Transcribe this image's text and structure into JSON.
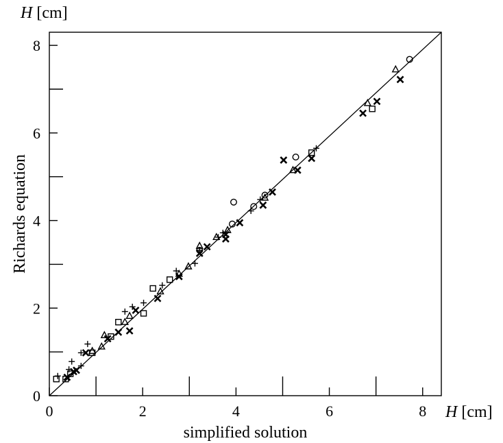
{
  "chart_data": {
    "type": "scatter",
    "xlabel": "simplified solution",
    "ylabel": "Richards equation",
    "x_unit_var": "H",
    "x_unit": "[cm]",
    "y_unit_var": "H",
    "y_unit": "[cm]",
    "xlim": [
      0,
      8.4
    ],
    "ylim": [
      0,
      8.3
    ],
    "x_ticks": [
      0,
      2,
      4,
      6,
      8
    ],
    "y_ticks": [
      0,
      2,
      4,
      6,
      8
    ],
    "x_tick_labels": [
      "0",
      "2",
      "4",
      "6",
      "8"
    ],
    "y_tick_labels": [
      "0",
      "2",
      "4",
      "6",
      "8"
    ],
    "x_minor_ticks": [
      1,
      3,
      5,
      7
    ],
    "y_minor_ticks": [
      1,
      3,
      5,
      7
    ],
    "grid": false,
    "legend": "none",
    "reference_line": {
      "x": [
        0,
        8.4
      ],
      "y": [
        0,
        8.3
      ]
    },
    "series": [
      {
        "marker": "plus",
        "points": [
          [
            0.18,
            0.45
          ],
          [
            0.42,
            0.6
          ],
          [
            0.48,
            0.78
          ],
          [
            0.68,
            0.68
          ],
          [
            0.68,
            0.98
          ],
          [
            0.82,
            1.18
          ],
          [
            1.62,
            1.92
          ],
          [
            1.78,
            2.03
          ],
          [
            2.02,
            2.12
          ],
          [
            2.42,
            2.52
          ],
          [
            2.72,
            2.85
          ],
          [
            3.12,
            3.02
          ],
          [
            3.22,
            3.32
          ],
          [
            3.62,
            3.62
          ],
          [
            3.72,
            3.72
          ],
          [
            4.32,
            4.22
          ],
          [
            4.52,
            4.48
          ],
          [
            5.72,
            5.65
          ]
        ]
      },
      {
        "marker": "cross",
        "points": [
          [
            0.38,
            0.42
          ],
          [
            0.52,
            0.55
          ],
          [
            0.58,
            0.58
          ],
          [
            0.78,
            0.98
          ],
          [
            1.25,
            1.3
          ],
          [
            1.48,
            1.45
          ],
          [
            1.72,
            1.48
          ],
          [
            1.85,
            1.95
          ],
          [
            2.32,
            2.22
          ],
          [
            2.78,
            2.72
          ],
          [
            3.22,
            3.25
          ],
          [
            3.38,
            3.4
          ],
          [
            3.78,
            3.58
          ],
          [
            3.78,
            3.68
          ],
          [
            4.08,
            3.95
          ],
          [
            4.58,
            4.35
          ],
          [
            4.78,
            4.65
          ],
          [
            5.02,
            5.38
          ],
          [
            5.32,
            5.15
          ],
          [
            5.62,
            5.42
          ],
          [
            6.72,
            6.45
          ],
          [
            7.02,
            6.72
          ],
          [
            7.52,
            7.22
          ]
        ]
      },
      {
        "marker": "square",
        "points": [
          [
            0.15,
            0.38
          ],
          [
            0.35,
            0.38
          ],
          [
            0.45,
            0.5
          ],
          [
            0.92,
            0.98
          ],
          [
            1.32,
            1.35
          ],
          [
            1.48,
            1.68
          ],
          [
            2.02,
            1.88
          ],
          [
            2.22,
            2.45
          ],
          [
            2.58,
            2.65
          ],
          [
            5.62,
            5.55
          ],
          [
            6.92,
            6.55
          ]
        ]
      },
      {
        "marker": "triangle",
        "points": [
          [
            0.92,
            1.02
          ],
          [
            1.12,
            1.12
          ],
          [
            1.18,
            1.38
          ],
          [
            1.62,
            1.68
          ],
          [
            1.72,
            1.82
          ],
          [
            2.38,
            2.38
          ],
          [
            2.78,
            2.78
          ],
          [
            2.98,
            2.95
          ],
          [
            3.22,
            3.42
          ],
          [
            3.58,
            3.62
          ],
          [
            3.82,
            3.78
          ],
          [
            4.62,
            4.52
          ],
          [
            5.22,
            5.15
          ],
          [
            6.82,
            6.68
          ],
          [
            7.42,
            7.45
          ]
        ]
      },
      {
        "marker": "circle",
        "points": [
          [
            3.22,
            3.32
          ],
          [
            3.92,
            3.92
          ],
          [
            3.95,
            4.42
          ],
          [
            4.38,
            4.32
          ],
          [
            4.62,
            4.58
          ],
          [
            5.28,
            5.45
          ],
          [
            7.72,
            7.68
          ]
        ]
      }
    ]
  }
}
